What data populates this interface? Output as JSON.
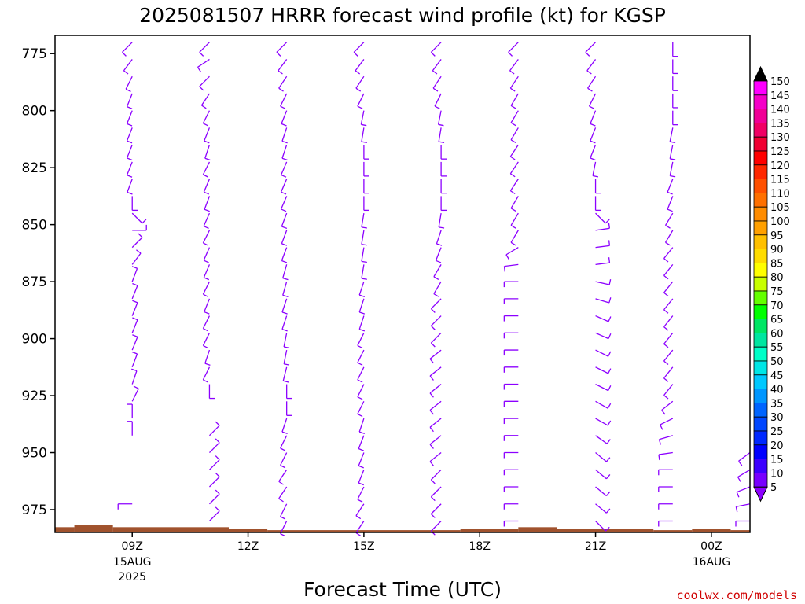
{
  "chart_data": {
    "type": "wind-profile",
    "title": "2025081507 HRRR forecast wind profile (kt) for KGSP",
    "xlabel": "Forecast Time (UTC)",
    "credit": "coolwx.com/models",
    "y_axis": {
      "units": "hPa",
      "range": [
        985,
        767
      ],
      "ticks": [
        "775",
        "800",
        "825",
        "850",
        "875",
        "900",
        "925",
        "950",
        "975"
      ]
    },
    "x_axis": {
      "units": "hours since 07Z 15AUG2025",
      "range": [
        0,
        18
      ],
      "ticks": [
        {
          "label": "09Z",
          "sub": [
            "15AUG",
            "2025"
          ]
        },
        {
          "label": "12Z",
          "sub": []
        },
        {
          "label": "15Z",
          "sub": []
        },
        {
          "label": "18Z",
          "sub": []
        },
        {
          "label": "21Z",
          "sub": []
        },
        {
          "label": "00Z",
          "sub": [
            "16AUG"
          ]
        }
      ]
    },
    "colorbar": {
      "labels": [
        "150",
        "145",
        "140",
        "135",
        "130",
        "125",
        "120",
        "115",
        "110",
        "105",
        "100",
        "95",
        "90",
        "85",
        "80",
        "75",
        "70",
        "65",
        "60",
        "55",
        "50",
        "45",
        "40",
        "35",
        "30",
        "25",
        "20",
        "15",
        "10",
        "5"
      ],
      "colors": [
        "#ff00ff",
        "#f500c8",
        "#f00096",
        "#f00064",
        "#f00032",
        "#ff0000",
        "#ff2800",
        "#ff5000",
        "#ff7000",
        "#ff8c00",
        "#ffa000",
        "#ffc000",
        "#ffdc00",
        "#ffff00",
        "#c8ff00",
        "#64ff00",
        "#00ff00",
        "#00e664",
        "#00e6a0",
        "#00ffc8",
        "#00e6e6",
        "#00c8ff",
        "#0096ff",
        "#0064ff",
        "#0046ff",
        "#0028ff",
        "#0000ff",
        "#3c00ff",
        "#7800ff"
      ],
      "top_color": "#000000",
      "bottom_color": "#8c00ff"
    },
    "barb_color": "#8c00ff",
    "terrain_color": "#a0522d",
    "terrain": [
      {
        "x": [
          0.0,
          0.5
        ],
        "p": 982.7
      },
      {
        "x": [
          0.5,
          1.5
        ],
        "p": 981.9
      },
      {
        "x": [
          1.5,
          4.5
        ],
        "p": 982.7
      },
      {
        "x": [
          4.5,
          5.5
        ],
        "p": 983.3
      },
      {
        "x": [
          5.5,
          10.5
        ],
        "p": 984.0
      },
      {
        "x": [
          10.5,
          12.0
        ],
        "p": 983.3
      },
      {
        "x": [
          12.0,
          13.0
        ],
        "p": 982.7
      },
      {
        "x": [
          13.0,
          15.5
        ],
        "p": 983.3
      },
      {
        "x": [
          15.5,
          16.5
        ],
        "p": 984.0
      },
      {
        "x": [
          16.5,
          17.5
        ],
        "p": 983.3
      },
      {
        "x": [
          17.5,
          18.0
        ],
        "p": 984.0
      }
    ],
    "profiles": [
      {
        "time": "09Z",
        "surface": 979,
        "u": [
          -1,
          -1.5,
          -2,
          -2,
          -2,
          -2,
          -2,
          -2,
          -1.5,
          0,
          1,
          1,
          1,
          1.5,
          1.5,
          2,
          2,
          2,
          2,
          1.5,
          1,
          1,
          0,
          0,
          0,
          0,
          0,
          -1,
          -2,
          -3
        ],
        "v": [
          -1,
          -2,
          -4,
          -5,
          -5,
          -5,
          -5,
          -5,
          -4,
          -3,
          -1,
          0,
          1,
          2,
          4,
          5,
          5,
          5,
          5,
          4,
          3,
          2,
          1,
          1,
          0,
          0,
          0,
          0,
          -1,
          -2
        ]
      },
      {
        "time": "11Z",
        "surface": 981,
        "u": [
          -1,
          -1.5,
          -2,
          -2,
          -2,
          -2,
          -2,
          -3,
          -3,
          -3,
          -4,
          -5,
          -4,
          -3,
          -3,
          -2,
          -2,
          -2,
          -1,
          -1,
          0,
          0,
          0,
          1,
          1,
          1,
          1,
          2,
          2,
          1
        ],
        "v": [
          -1,
          -1,
          -2,
          -3,
          -4,
          -5,
          -6,
          -6,
          -7,
          -8,
          -9,
          -10,
          -9,
          -7,
          -6,
          -5,
          -4,
          -4,
          -3,
          -2,
          -1,
          0,
          0,
          1,
          1,
          1,
          1,
          2,
          2,
          2
        ]
      },
      {
        "time": "13Z",
        "surface": 983,
        "u": [
          -1,
          -1.5,
          -2,
          -2,
          -2,
          -2,
          -2,
          -3,
          -3,
          -3,
          -3,
          -3,
          -3,
          -2,
          -2,
          -2,
          -2,
          -1,
          -1,
          -1,
          0,
          0,
          -1,
          -1,
          -1,
          -2,
          -2,
          -2,
          -2,
          -2
        ],
        "v": [
          -1,
          -2,
          -3,
          -4,
          -5,
          -6,
          -6,
          -7,
          -7,
          -7,
          -8,
          -8,
          -8,
          -7,
          -7,
          -6,
          -6,
          -5,
          -5,
          -4,
          -3,
          -3,
          -3,
          -2,
          -2,
          -3,
          -3,
          -4,
          -4,
          -4
        ]
      },
      {
        "time": "15Z",
        "surface": 983,
        "u": [
          -1,
          -1.5,
          -2,
          -2,
          -1,
          -1,
          0,
          0,
          0,
          0,
          -1,
          -1,
          -1,
          -1,
          -2,
          -2,
          -2,
          -3,
          -3,
          -3,
          -3,
          -3,
          -2,
          -2,
          -2,
          -2,
          -2,
          -2,
          -2,
          -1
        ],
        "v": [
          -1,
          -2,
          -3,
          -4,
          -5,
          -6,
          -7,
          -7,
          -7,
          -7,
          -6,
          -6,
          -6,
          -6,
          -6,
          -6,
          -6,
          -6,
          -6,
          -6,
          -6,
          -6,
          -6,
          -5,
          -5,
          -5,
          -4,
          -3,
          -3,
          -2
        ]
      },
      {
        "time": "17Z",
        "surface": 983,
        "u": [
          -1,
          -1.5,
          -2,
          -2,
          -1,
          -1,
          0,
          0,
          0,
          0,
          -1,
          -2,
          -2,
          -3,
          -3,
          -4,
          -4,
          -4,
          -5,
          -5,
          -5,
          -5,
          -5,
          -5,
          -5,
          -4,
          -4,
          -4,
          -3,
          -3
        ],
        "v": [
          -1,
          -2,
          -3,
          -4,
          -5,
          -6,
          -6,
          -6,
          -7,
          -7,
          -6,
          -6,
          -5,
          -5,
          -5,
          -4,
          -4,
          -4,
          -4,
          -4,
          -4,
          -4,
          -4,
          -4,
          -4,
          -4,
          -4,
          -4,
          -3,
          -3
        ]
      },
      {
        "time": "19Z",
        "surface": 984,
        "u": [
          -1,
          -1.5,
          -2,
          -3,
          -3,
          -3,
          -4,
          -4,
          -4,
          -3,
          -3,
          -3,
          -5,
          -8,
          -10,
          -10,
          -10,
          -10,
          -10,
          -10,
          -10,
          -10,
          -10,
          -10,
          -10,
          -10,
          -10,
          -10,
          -10,
          -10
        ],
        "v": [
          -1,
          -2,
          -3,
          -5,
          -5,
          -5,
          -6,
          -6,
          -6,
          -5,
          -5,
          -5,
          -3,
          -1,
          0,
          0,
          0,
          0,
          0,
          0,
          0,
          0,
          0,
          0,
          0,
          0,
          0,
          0,
          0,
          0
        ]
      },
      {
        "time": "21Z",
        "surface": 984,
        "u": [
          -1,
          -1.5,
          -2,
          -2,
          -2,
          -2,
          -2,
          -1,
          0,
          0,
          5,
          7,
          8,
          8,
          9,
          10,
          9,
          9,
          8,
          8,
          8,
          7,
          7,
          7,
          6,
          6,
          6,
          6,
          5,
          5
        ],
        "v": [
          -1,
          -2,
          -3,
          -4,
          -5,
          -5,
          -5,
          -5,
          -5,
          -5,
          -5,
          1,
          1,
          1,
          -2,
          -3,
          -4,
          -4,
          -4,
          -4,
          -4,
          -4,
          -4,
          -5,
          -5,
          -5,
          -5,
          -5,
          -5,
          -5
        ]
      },
      {
        "time": "23Z",
        "surface": 984,
        "u": [
          0,
          0,
          0,
          0,
          0,
          -1,
          -1,
          -1,
          -2,
          -2,
          -3,
          -3,
          -4,
          -4,
          -4,
          -4,
          -4,
          -4,
          -4,
          -4,
          -4,
          -5,
          -6,
          -7,
          -7,
          -7,
          -7,
          -7,
          -7,
          -7
        ],
        "v": [
          -1,
          -2,
          -3,
          -3,
          -4,
          -5,
          -5,
          -5,
          -5,
          -5,
          -5,
          -5,
          -5,
          -5,
          -5,
          -5,
          -5,
          -5,
          -5,
          -5,
          -5,
          -4,
          -3,
          -2,
          -1,
          0,
          0,
          0,
          0,
          0
        ]
      },
      {
        "time": "01Z",
        "surface": 984,
        "u": [
          -4,
          -5,
          -5,
          -5,
          -5
        ],
        "v": [
          -3,
          -3,
          -2,
          -1,
          0
        ]
      }
    ]
  }
}
